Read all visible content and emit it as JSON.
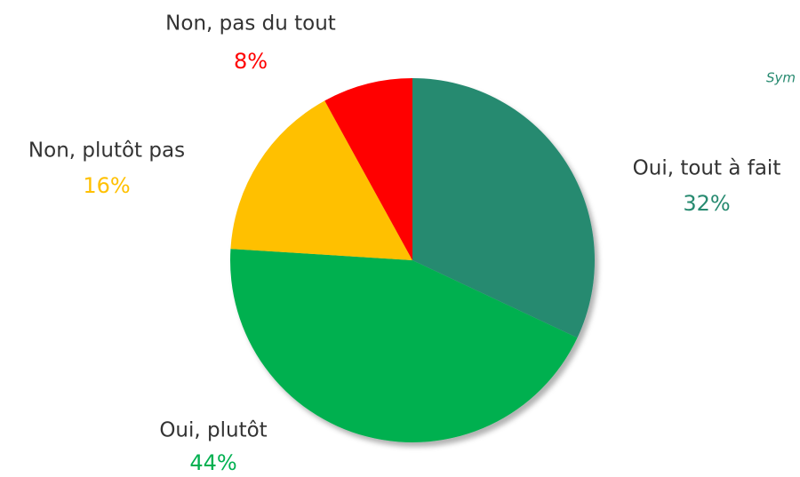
{
  "chart_data": {
    "type": "pie",
    "categories": [
      "Oui, tout à fait",
      "Oui, plutôt",
      "Non, plutôt pas",
      "Non, pas du tout"
    ],
    "values": [
      32,
      44,
      16,
      8
    ],
    "value_labels": [
      "32%",
      "44%",
      "16%",
      "8%"
    ],
    "colors": [
      "#278a70",
      "#00b050",
      "#ffc000",
      "#ff0000"
    ],
    "annotation": "Sym"
  }
}
